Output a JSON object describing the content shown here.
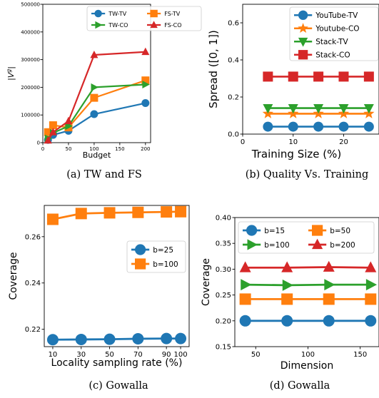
{
  "chart_data": [
    {
      "type": "line",
      "xlabel": "Budget",
      "ylabel": "|V^g|",
      "xlim": [
        0,
        210
      ],
      "ylim": [
        0,
        500000
      ],
      "xticks": [
        "0",
        "50",
        "100",
        "150",
        "200"
      ],
      "yticks": [
        "0",
        "100000",
        "200000",
        "300000",
        "400000",
        "500000"
      ],
      "caption": "(a) TW and FS",
      "legend_position": "top-right",
      "series": [
        {
          "name": "TW-TV",
          "color": "#1f77b4",
          "marker": "circle",
          "x": [
            10,
            20,
            50,
            100,
            200
          ],
          "y": [
            10000,
            28000,
            43000,
            103000,
            143000
          ]
        },
        {
          "name": "FS-TV",
          "color": "#ff7f0e",
          "marker": "square",
          "x": [
            10,
            20,
            50,
            100,
            200
          ],
          "y": [
            38000,
            63000,
            55000,
            162000,
            225000
          ]
        },
        {
          "name": "TW-CO",
          "color": "#2ca02c",
          "marker": "triangle-right",
          "x": [
            10,
            20,
            50,
            100,
            200
          ],
          "y": [
            15000,
            35000,
            60000,
            200000,
            210000
          ]
        },
        {
          "name": "FS-CO",
          "color": "#d62728",
          "marker": "triangle-up",
          "x": [
            10,
            20,
            50,
            100,
            200
          ],
          "y": [
            8000,
            38000,
            78000,
            317000,
            328000
          ]
        }
      ]
    },
    {
      "type": "line",
      "xlabel": "Training Size (%)",
      "ylabel": "Spread ([0,1])",
      "xlim": [
        0,
        27
      ],
      "ylim": [
        0,
        0.7
      ],
      "xticks": [
        "0",
        "10",
        "20"
      ],
      "yticks": [
        "0.0",
        "0.2",
        "0.4",
        "0.6"
      ],
      "caption": "(b) Quality Vs. Training",
      "legend_position": "top-right",
      "series": [
        {
          "name": "YouTube-TV",
          "color": "#1f77b4",
          "marker": "circle",
          "x": [
            5,
            10,
            15,
            20,
            25
          ],
          "y": [
            0.04,
            0.04,
            0.04,
            0.04,
            0.04
          ]
        },
        {
          "name": "Youtube-CO",
          "color": "#ff7f0e",
          "marker": "star",
          "x": [
            5,
            10,
            15,
            20,
            25
          ],
          "y": [
            0.11,
            0.11,
            0.11,
            0.11,
            0.11
          ]
        },
        {
          "name": "Stack-TV",
          "color": "#2ca02c",
          "marker": "triangle-down",
          "x": [
            5,
            10,
            15,
            20,
            25
          ],
          "y": [
            0.14,
            0.14,
            0.14,
            0.14,
            0.14
          ]
        },
        {
          "name": "Stack-CO",
          "color": "#d62728",
          "marker": "square",
          "x": [
            5,
            10,
            15,
            20,
            25
          ],
          "y": [
            0.31,
            0.31,
            0.31,
            0.31,
            0.31
          ]
        }
      ]
    },
    {
      "type": "line",
      "xlabel": "Locality sampling rate (%)",
      "ylabel": "Coverage",
      "xlim": [
        4,
        106
      ],
      "ylim": [
        0.2125,
        0.2735
      ],
      "xticks": [
        "10",
        "30",
        "50",
        "70",
        "90",
        "100"
      ],
      "yticks": [
        "0.22",
        "0.24",
        "0.26"
      ],
      "caption": "(c) Gowalla",
      "legend_position": "center-right",
      "series": [
        {
          "name": "b=25",
          "color": "#1f77b4",
          "marker": "circle",
          "x": [
            10,
            30,
            50,
            70,
            90,
            100
          ],
          "y": [
            0.2155,
            0.2156,
            0.2157,
            0.2159,
            0.216,
            0.216
          ]
        },
        {
          "name": "b=100",
          "color": "#ff7f0e",
          "marker": "square",
          "x": [
            10,
            30,
            50,
            70,
            90,
            100
          ],
          "y": [
            0.2675,
            0.27,
            0.2703,
            0.2705,
            0.2707,
            0.2708
          ]
        }
      ]
    },
    {
      "type": "line",
      "xlabel": "Dimension",
      "ylabel": "Coverage",
      "xlim": [
        30,
        168
      ],
      "ylim": [
        0.15,
        0.4
      ],
      "xticks": [
        "50",
        "100",
        "150"
      ],
      "yticks": [
        "0.15",
        "0.20",
        "0.25",
        "0.30",
        "0.35",
        "0.40"
      ],
      "caption": "(d) Gowalla",
      "legend_position": "top",
      "series": [
        {
          "name": "b=15",
          "color": "#1f77b4",
          "marker": "circle",
          "x": [
            40,
            80,
            120,
            160
          ],
          "y": [
            0.2,
            0.2,
            0.2,
            0.2
          ]
        },
        {
          "name": "b=50",
          "color": "#ff7f0e",
          "marker": "square",
          "x": [
            40,
            80,
            120,
            160
          ],
          "y": [
            0.242,
            0.242,
            0.242,
            0.242
          ]
        },
        {
          "name": "b=100",
          "color": "#2ca02c",
          "marker": "triangle-right",
          "x": [
            40,
            80,
            120,
            160
          ],
          "y": [
            0.27,
            0.269,
            0.27,
            0.27
          ]
        },
        {
          "name": "b=200",
          "color": "#d62728",
          "marker": "triangle-up",
          "x": [
            40,
            80,
            120,
            160
          ],
          "y": [
            0.303,
            0.303,
            0.304,
            0.303
          ]
        }
      ]
    }
  ]
}
